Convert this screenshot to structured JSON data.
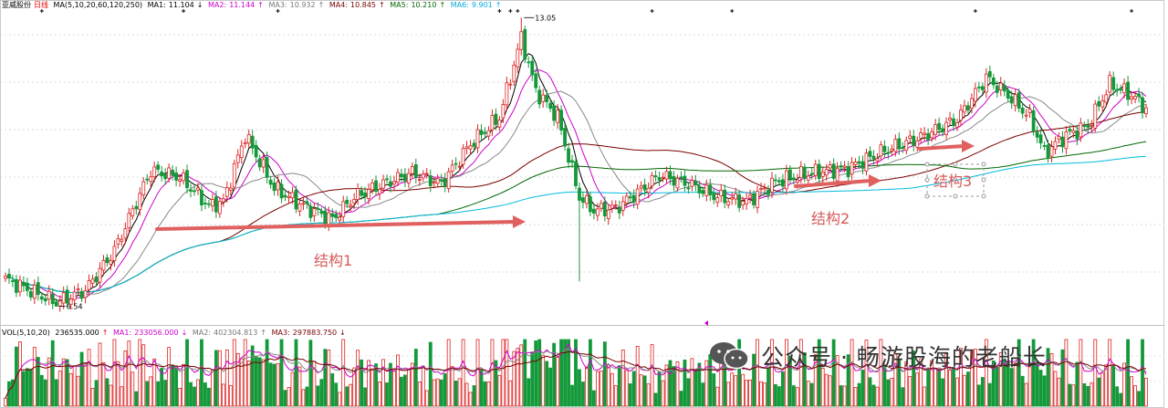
{
  "chart_data": [
    {
      "type": "candlestick",
      "panel": "price",
      "stock_name": "亚威股份",
      "period": "日线",
      "ma_header": "MA(5,10,20,60,120,250)",
      "ma_values": [
        {
          "label": "MA1:",
          "value": "11.104",
          "arrow": "↓",
          "color": "#000000"
        },
        {
          "label": "MA2:",
          "value": "11.144",
          "arrow": "↑",
          "color": "#cc00cc"
        },
        {
          "label": "MA3:",
          "value": "10.932",
          "arrow": "↑",
          "color": "#888888"
        },
        {
          "label": "MA4:",
          "value": "10.845",
          "arrow": "↑",
          "color": "#7a0000"
        },
        {
          "label": "MA5:",
          "value": "10.210",
          "arrow": "↑",
          "color": "#006600"
        },
        {
          "label": "MA6:",
          "value": "9.901",
          "arrow": "↑",
          "color": "#00bbdd"
        }
      ],
      "annotations": {
        "high_label": "13.05",
        "low_label": "6.54",
        "structures": [
          "结构1",
          "结构2",
          "结构3"
        ]
      },
      "scale": "price"
    },
    {
      "type": "bar",
      "panel": "volume",
      "header": "VOL(5,10,20)",
      "volume": {
        "value": "236535.000",
        "arrow": "↑"
      },
      "ma_values": [
        {
          "label": "MA1:",
          "value": "233056.000",
          "arrow": "↓",
          "color": "#cc00cc"
        },
        {
          "label": "MA2:",
          "value": "402304.813",
          "arrow": "↑",
          "color": "#888888"
        },
        {
          "label": "MA3:",
          "value": "297883.750",
          "arrow": "↓",
          "color": "#7a0000"
        }
      ]
    }
  ],
  "colors": {
    "up": "#dd2222",
    "down": "#13993a",
    "period_text": "#ee0000",
    "arrow": "#e06060",
    "ma1": "#000000",
    "ma2": "#cc00cc",
    "ma3": "#888888",
    "ma4": "#7a0000",
    "ma5": "#006600",
    "ma6": "#00bbdd"
  },
  "watermark": {
    "text": "公众号 · 畅游股海的老船长",
    "icon": "wechat-icon"
  }
}
